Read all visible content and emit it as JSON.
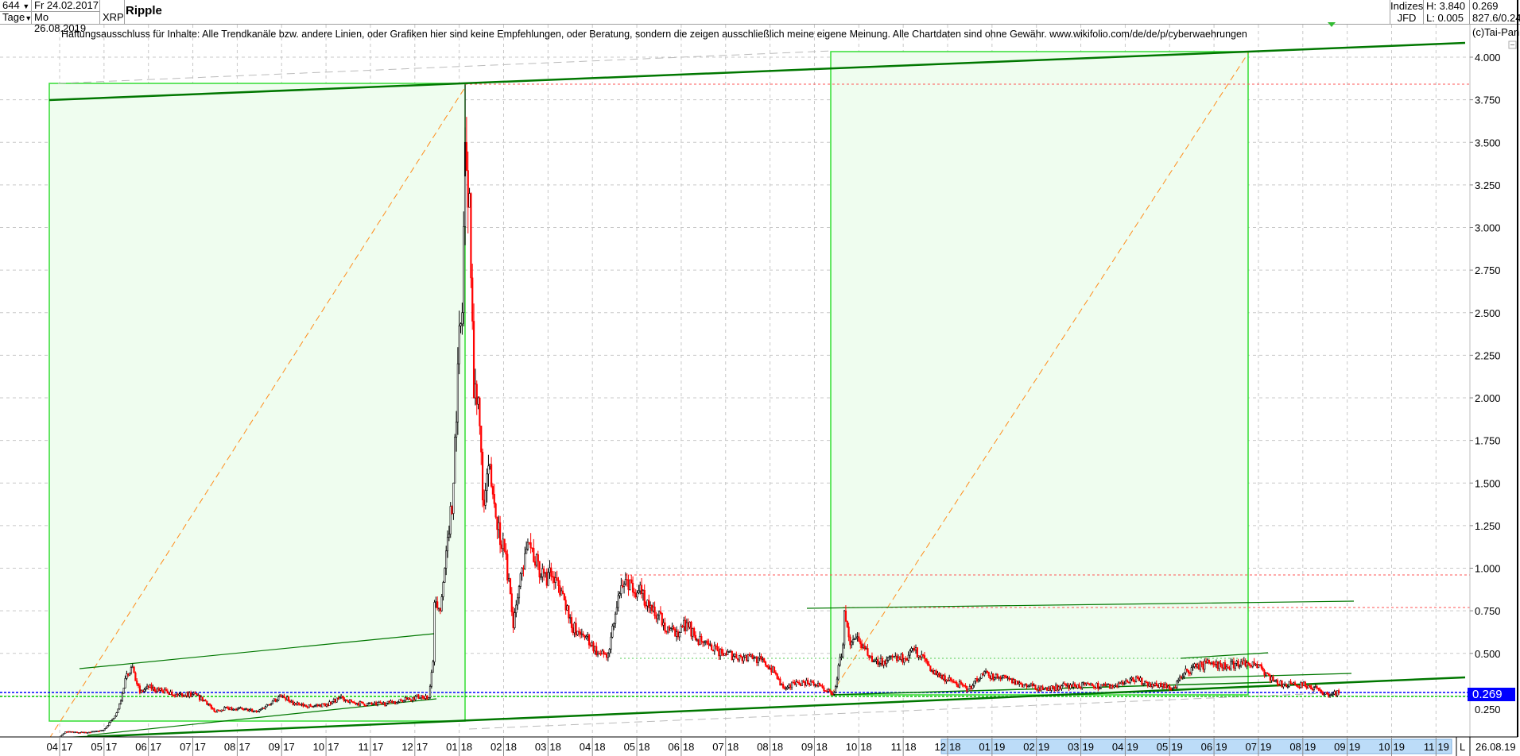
{
  "header": {
    "bars_count": "644",
    "period": "Tage",
    "start_date": "Fr 24.02.2017",
    "end_date": "Mo 26.08.2019",
    "symbol": "XRP",
    "title": "Ripple",
    "index_label": "Indizes",
    "source_label": "JFD",
    "high": "H: 3.840",
    "low": "L: 0.005",
    "last_value": "0.269",
    "extra_value": "827.6/0.24"
  },
  "disclaimer": "Haftungsausschluss für Inhalte: Alle Trendkanäle bzw. andere Linien, oder Grafiken hier sind keine Empfehlungen, oder Beratung, sondern die zeigen ausschließlich meine eigene Meinung. Alle Chartdaten sind ohne Gewähr.  www.wikifolio.com/de/de/p/cyberwaehrungen",
  "copyright": "(c)Tai-Pan",
  "current_price_label": "0.269",
  "footer": {
    "mode": "L",
    "date": "26.08.19"
  },
  "colors": {
    "up_candle": "#000000",
    "down_candle": "#ff0000",
    "box_fill": "#effdef",
    "box_stroke": "#33dd33",
    "trend": "#007700",
    "price_marker": "#0000ff"
  },
  "chart_data": {
    "type": "candlestick",
    "ylim": [
      0,
      4.1
    ],
    "grid": true,
    "y_ticks": [
      "4.000",
      "3.750",
      "3.500",
      "3.250",
      "3.000",
      "2.750",
      "2.500",
      "2.250",
      "2.000",
      "1.750",
      "1.500",
      "1.250",
      "1.000",
      "0.750",
      "0.500",
      "0.250"
    ],
    "x_ticks": [
      [
        "04",
        "17"
      ],
      [
        "05",
        "17"
      ],
      [
        "06",
        "17"
      ],
      [
        "07",
        "17"
      ],
      [
        "08",
        "17"
      ],
      [
        "09",
        "17"
      ],
      [
        "10",
        "17"
      ],
      [
        "11",
        "17"
      ],
      [
        "12",
        "17"
      ],
      [
        "01",
        "18"
      ],
      [
        "02",
        "18"
      ],
      [
        "03",
        "18"
      ],
      [
        "04",
        "18"
      ],
      [
        "05",
        "18"
      ],
      [
        "06",
        "18"
      ],
      [
        "07",
        "18"
      ],
      [
        "08",
        "18"
      ],
      [
        "09",
        "18"
      ],
      [
        "10",
        "18"
      ],
      [
        "11",
        "18"
      ],
      [
        "12",
        "18"
      ],
      [
        "01",
        "19"
      ],
      [
        "02",
        "19"
      ],
      [
        "03",
        "19"
      ],
      [
        "04",
        "19"
      ],
      [
        "05",
        "19"
      ],
      [
        "06",
        "19"
      ],
      [
        "07",
        "19"
      ],
      [
        "08",
        "19"
      ],
      [
        "09",
        "19"
      ],
      [
        "10",
        "19"
      ],
      [
        "11",
        "19"
      ]
    ],
    "high": 3.84,
    "low": 0.005,
    "last": 0.269,
    "horizontal_levels": [
      3.84,
      0.96,
      0.77,
      0.269
    ],
    "closes": [
      [
        "2017-02-24",
        0.0045
      ],
      [
        "2017-03-10",
        0.0045
      ],
      [
        "2017-03-25",
        0.008
      ],
      [
        "2017-04-01",
        0.01
      ],
      [
        "2017-04-05",
        0.04
      ],
      [
        "2017-04-20",
        0.035
      ],
      [
        "2017-05-01",
        0.05
      ],
      [
        "2017-05-08",
        0.12
      ],
      [
        "2017-05-13",
        0.22
      ],
      [
        "2017-05-17",
        0.38
      ],
      [
        "2017-05-21",
        0.42
      ],
      [
        "2017-05-26",
        0.27
      ],
      [
        "2017-06-01",
        0.3
      ],
      [
        "2017-06-10",
        0.28
      ],
      [
        "2017-06-20",
        0.26
      ],
      [
        "2017-07-01",
        0.26
      ],
      [
        "2017-07-10",
        0.22
      ],
      [
        "2017-07-16",
        0.16
      ],
      [
        "2017-07-25",
        0.18
      ],
      [
        "2017-08-05",
        0.17
      ],
      [
        "2017-08-15",
        0.16
      ],
      [
        "2017-08-25",
        0.22
      ],
      [
        "2017-09-01",
        0.25
      ],
      [
        "2017-09-10",
        0.2
      ],
      [
        "2017-09-20",
        0.19
      ],
      [
        "2017-10-01",
        0.2
      ],
      [
        "2017-10-10",
        0.24
      ],
      [
        "2017-10-20",
        0.21
      ],
      [
        "2017-11-01",
        0.2
      ],
      [
        "2017-11-15",
        0.21
      ],
      [
        "2017-11-25",
        0.23
      ],
      [
        "2017-12-05",
        0.25
      ],
      [
        "2017-12-10",
        0.24
      ],
      [
        "2017-12-13",
        0.45
      ],
      [
        "2017-12-14",
        0.8
      ],
      [
        "2017-12-18",
        0.75
      ],
      [
        "2017-12-21",
        1.0
      ],
      [
        "2017-12-24",
        1.2
      ],
      [
        "2017-12-27",
        1.5
      ],
      [
        "2017-12-30",
        2.2
      ],
      [
        "2018-01-02",
        2.5
      ],
      [
        "2018-01-04",
        3.5
      ],
      [
        "2018-01-07",
        3.2
      ],
      [
        "2018-01-10",
        2.0
      ],
      [
        "2018-01-13",
        2.0
      ],
      [
        "2018-01-16",
        1.4
      ],
      [
        "2018-01-20",
        1.6
      ],
      [
        "2018-01-25",
        1.3
      ],
      [
        "2018-01-31",
        1.1
      ],
      [
        "2018-02-04",
        0.85
      ],
      [
        "2018-02-06",
        0.65
      ],
      [
        "2018-02-12",
        1.0
      ],
      [
        "2018-02-17",
        1.15
      ],
      [
        "2018-02-25",
        0.95
      ],
      [
        "2018-03-05",
        0.95
      ],
      [
        "2018-03-12",
        0.85
      ],
      [
        "2018-03-18",
        0.65
      ],
      [
        "2018-03-28",
        0.6
      ],
      [
        "2018-04-05",
        0.5
      ],
      [
        "2018-04-12",
        0.5
      ],
      [
        "2018-04-20",
        0.85
      ],
      [
        "2018-04-25",
        0.93
      ],
      [
        "2018-05-05",
        0.85
      ],
      [
        "2018-05-12",
        0.75
      ],
      [
        "2018-05-20",
        0.68
      ],
      [
        "2018-05-28",
        0.6
      ],
      [
        "2018-06-05",
        0.68
      ],
      [
        "2018-06-12",
        0.58
      ],
      [
        "2018-06-22",
        0.52
      ],
      [
        "2018-07-01",
        0.5
      ],
      [
        "2018-07-12",
        0.48
      ],
      [
        "2018-07-20",
        0.47
      ],
      [
        "2018-07-28",
        0.45
      ],
      [
        "2018-08-05",
        0.38
      ],
      [
        "2018-08-10",
        0.3
      ],
      [
        "2018-08-20",
        0.33
      ],
      [
        "2018-08-30",
        0.33
      ],
      [
        "2018-09-08",
        0.28
      ],
      [
        "2018-09-14",
        0.27
      ],
      [
        "2018-09-20",
        0.55
      ],
      [
        "2018-09-21",
        0.75
      ],
      [
        "2018-09-25",
        0.55
      ],
      [
        "2018-10-01",
        0.57
      ],
      [
        "2018-10-10",
        0.45
      ],
      [
        "2018-10-20",
        0.46
      ],
      [
        "2018-11-01",
        0.47
      ],
      [
        "2018-11-08",
        0.52
      ],
      [
        "2018-11-15",
        0.47
      ],
      [
        "2018-11-20",
        0.4
      ],
      [
        "2018-11-25",
        0.36
      ],
      [
        "2018-12-05",
        0.33
      ],
      [
        "2018-12-15",
        0.29
      ],
      [
        "2018-12-24",
        0.38
      ],
      [
        "2019-01-05",
        0.36
      ],
      [
        "2019-01-20",
        0.32
      ],
      [
        "2019-02-05",
        0.29
      ],
      [
        "2019-02-20",
        0.31
      ],
      [
        "2019-03-10",
        0.31
      ],
      [
        "2019-03-25",
        0.31
      ],
      [
        "2019-04-05",
        0.35
      ],
      [
        "2019-04-20",
        0.32
      ],
      [
        "2019-05-05",
        0.3
      ],
      [
        "2019-05-14",
        0.4
      ],
      [
        "2019-05-20",
        0.42
      ],
      [
        "2019-05-30",
        0.44
      ],
      [
        "2019-06-10",
        0.42
      ],
      [
        "2019-06-20",
        0.45
      ],
      [
        "2019-06-28",
        0.45
      ],
      [
        "2019-07-05",
        0.4
      ],
      [
        "2019-07-15",
        0.32
      ],
      [
        "2019-07-25",
        0.32
      ],
      [
        "2019-08-05",
        0.31
      ],
      [
        "2019-08-12",
        0.29
      ],
      [
        "2019-08-16",
        0.26
      ],
      [
        "2019-08-26",
        0.269
      ]
    ]
  }
}
